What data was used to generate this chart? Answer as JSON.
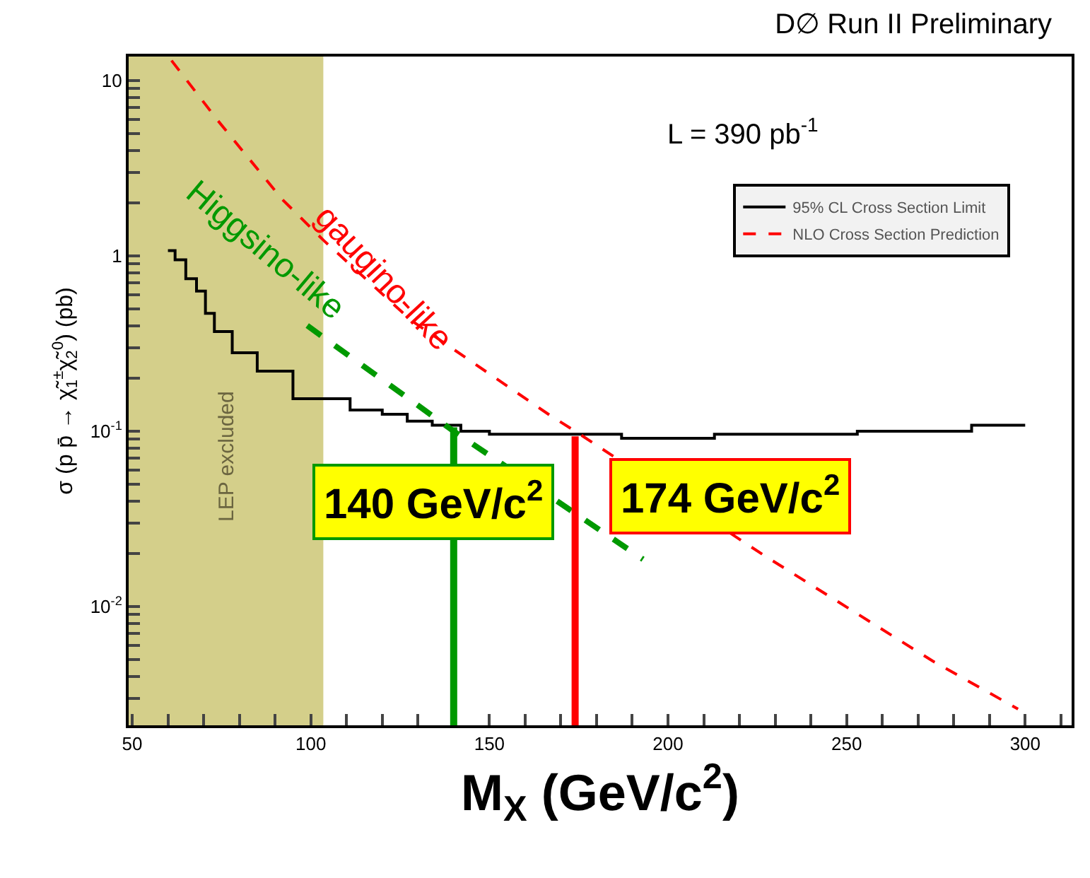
{
  "chart_data": {
    "type": "line",
    "title": "D∅ Run II Preliminary",
    "xlabel": "M$_{X}$ (GeV/c$^{2}$)",
    "ylabel": "σ (p p̄ → χ̃$_{1}$$^{±}$χ̃$_{2}$$^{0}$) (pb)",
    "log": "y",
    "grid": false,
    "legend": "top right",
    "marker": "none",
    "xlim": [
      49,
      313
    ],
    "ylim": [
      0.0021,
      13.7
    ],
    "xticks": [
      50,
      {
        "value": 60,
        "label": null
      },
      {
        "value": 70,
        "label": null
      },
      {
        "value": 80,
        "label": null
      },
      {
        "value": 90,
        "label": null
      },
      100,
      {
        "value": 110,
        "label": null
      },
      {
        "value": 120,
        "label": null
      },
      {
        "value": 130,
        "label": null
      },
      {
        "value": 140,
        "label": null
      },
      150,
      {
        "value": 160,
        "label": null
      },
      {
        "value": 170,
        "label": null
      },
      {
        "value": 180,
        "label": null
      },
      {
        "value": 190,
        "label": null
      },
      200,
      {
        "value": 210,
        "label": null
      },
      {
        "value": 220,
        "label": null
      },
      {
        "value": 230,
        "label": null
      },
      {
        "value": 240,
        "label": null
      },
      250,
      {
        "value": 260,
        "label": null
      },
      {
        "value": 270,
        "label": null
      },
      {
        "value": 280,
        "label": null
      },
      {
        "value": 290,
        "label": null
      },
      300,
      {
        "value": 310,
        "label": null
      }
    ],
    "yticks": [
      {
        "value": 0.003,
        "label": null
      },
      {
        "value": 0.004,
        "label": null
      },
      {
        "value": 0.005,
        "label": null
      },
      {
        "value": 0.006,
        "label": null
      },
      {
        "value": 0.007,
        "label": null
      },
      {
        "value": 0.008,
        "label": null
      },
      {
        "value": 0.009,
        "label": null
      },
      {
        "value": 0.01,
        "label": "10$^{-2}$"
      },
      {
        "value": 0.02,
        "label": null
      },
      {
        "value": 0.03,
        "label": null
      },
      {
        "value": 0.04,
        "label": null
      },
      {
        "value": 0.05,
        "label": null
      },
      {
        "value": 0.06,
        "label": null
      },
      {
        "value": 0.07,
        "label": null
      },
      {
        "value": 0.08,
        "label": null
      },
      {
        "value": 0.09,
        "label": null
      },
      {
        "value": 0.1,
        "label": "10$^{-1}$"
      },
      {
        "value": 0.2,
        "label": null
      },
      {
        "value": 0.3,
        "label": null
      },
      {
        "value": 0.4,
        "label": null
      },
      {
        "value": 0.5,
        "label": null
      },
      {
        "value": 0.6,
        "label": null
      },
      {
        "value": 0.7,
        "label": null
      },
      {
        "value": 0.8,
        "label": null
      },
      {
        "value": 0.9,
        "label": null
      },
      1,
      {
        "value": 2,
        "label": null
      },
      {
        "value": 3,
        "label": null
      },
      {
        "value": 4,
        "label": null
      },
      {
        "value": 5,
        "label": null
      },
      {
        "value": 6,
        "label": null
      },
      {
        "value": 7,
        "label": null
      },
      {
        "value": 8,
        "label": null
      },
      {
        "value": 9,
        "label": null
      },
      10
    ],
    "series": [
      {
        "name": "95% CL Cross Section Limit",
        "type": "step",
        "color": "#000000",
        "line_style": "solid",
        "x": [
          60,
          62,
          65,
          68,
          70.5,
          73,
          78,
          85,
          95,
          111,
          120,
          127,
          134,
          142,
          150,
          187,
          213,
          253,
          285,
          300
        ],
        "values": [
          1.07,
          0.95,
          0.74,
          0.63,
          0.47,
          0.37,
          0.28,
          0.22,
          0.153,
          0.132,
          0.125,
          0.114,
          0.108,
          0.1,
          0.096,
          0.091,
          0.096,
          0.1,
          0.108,
          0.108
        ]
      },
      {
        "name": "NLO Cross Section Prediction",
        "color": "#ff0000",
        "line_style": "dashed",
        "x": [
          61,
          74,
          92,
          103.5,
          128,
          167,
          174,
          227,
          274,
          298
        ],
        "values": [
          13,
          5.9,
          2.1,
          1.23,
          0.43,
          0.123,
          0.1,
          0.0195,
          0.0049,
          0.0026
        ]
      },
      {
        "name": "Higgsino-like",
        "color": "#009900",
        "line_style": "dashed",
        "x": [
          99,
          140,
          193
        ],
        "values": [
          0.4,
          0.1,
          0.0186
        ]
      }
    ],
    "bands": [
      {
        "axis": "x",
        "from": 49,
        "to": 103.5,
        "label": "LEP excluded",
        "color": "#d4cf8a"
      }
    ],
    "ref_lines": [
      {
        "axis": "x",
        "value": 140,
        "label": "140 GeV/c$^{2}$",
        "color": "#009900"
      },
      {
        "axis": "x",
        "value": 174,
        "label": "174 GeV/c$^{2}$",
        "color": "#ff0000"
      }
    ],
    "annotations": [
      "L = 390 pb$^{-1}$",
      "gaugino-like"
    ]
  }
}
